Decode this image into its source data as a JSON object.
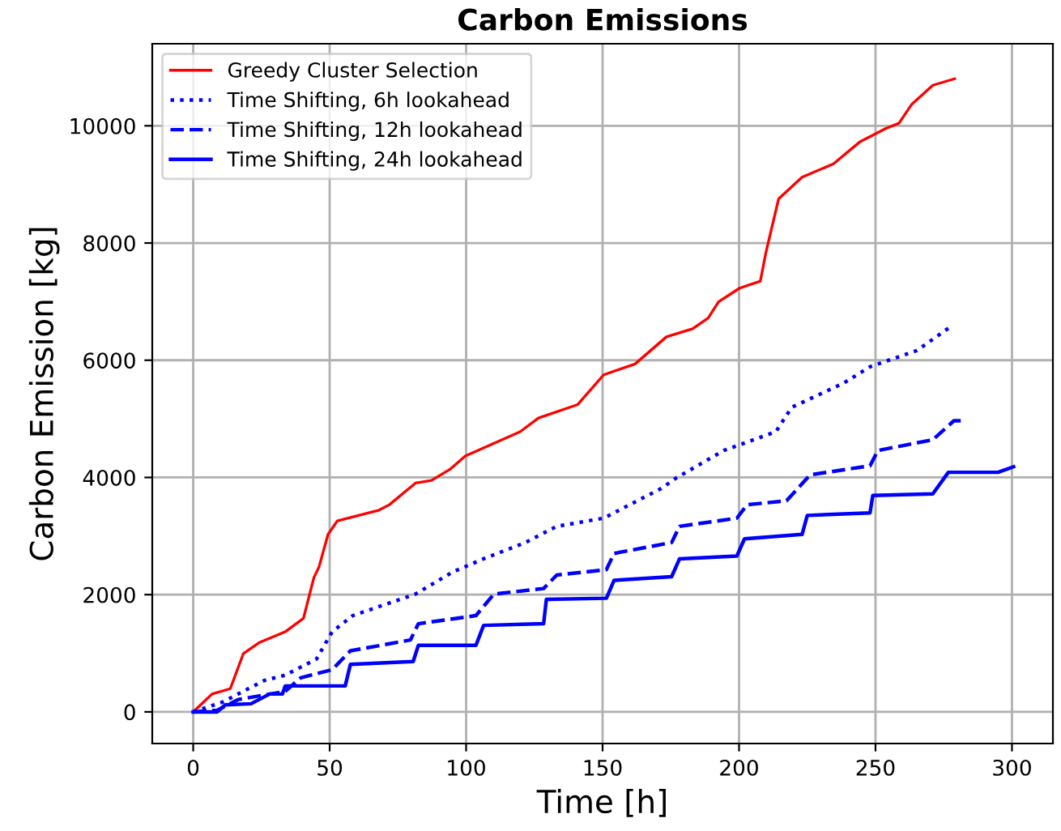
{
  "chart_data": {
    "type": "line",
    "title": "Carbon Emissions",
    "xlabel": "Time [h]",
    "ylabel": "Carbon Emission [kg]",
    "xlim": [
      -15,
      315
    ],
    "ylim": [
      -540,
      11400
    ],
    "xticks": [
      0,
      50,
      100,
      150,
      200,
      250,
      300
    ],
    "yticks": [
      0,
      2000,
      4000,
      6000,
      8000,
      10000
    ],
    "grid": true,
    "legend": "top left",
    "series": [
      {
        "name": "Greedy Cluster Selection",
        "color": "#ff0000",
        "line_style": "solid",
        "x": [
          0,
          6.9,
          13.6,
          18.4,
          24.1,
          33.7,
          40.4,
          44.2,
          46.1,
          49.4,
          52.8,
          68.1,
          71.9,
          81.5,
          87.3,
          94,
          99.7,
          106.4,
          119.8,
          126.5,
          140.9,
          150.4,
          161.9,
          173.4,
          183,
          188.7,
          192.5,
          200.2,
          207.8,
          209.8,
          214.5,
          223.1,
          234.6,
          244.2,
          253.7,
          258.6,
          263.3,
          271,
          279
        ],
        "values": [
          0,
          305,
          396,
          997,
          1180,
          1366,
          1596,
          2288,
          2474,
          3028,
          3258,
          3443,
          3535,
          3906,
          3950,
          4136,
          4366,
          4504,
          4781,
          5014,
          5244,
          5751,
          5936,
          6399,
          6537,
          6720,
          6997,
          7230,
          7349,
          7828,
          8753,
          9122,
          9352,
          9723,
          9953,
          10044,
          10368,
          10692,
          10803
        ]
      },
      {
        "name": "Time Shifting, 6h lookahead",
        "color": "#0000ff",
        "line_style": "dotted",
        "x": [
          0,
          10.7,
          26,
          33.7,
          45.2,
          50.9,
          58.5,
          75.8,
          81.5,
          94.9,
          106.4,
          121.7,
          133.2,
          150.4,
          171.5,
          177.2,
          194.4,
          213.5,
          219.3,
          238.4,
          248,
          265.2,
          277.8
        ],
        "values": [
          0,
          166,
          535,
          626,
          903,
          1366,
          1643,
          1920,
          2011,
          2382,
          2612,
          2889,
          3166,
          3305,
          3812,
          3997,
          4460,
          4781,
          5196,
          5612,
          5889,
          6166,
          6582
        ]
      },
      {
        "name": "Time Shifting, 12h lookahead",
        "color": "#0000ff",
        "line_style": "dashed",
        "x": [
          0,
          8.8,
          16.5,
          33.7,
          39.4,
          50.9,
          57.6,
          79.6,
          82.5,
          103.6,
          110.2,
          128.4,
          133.2,
          151.4,
          154.2,
          175.3,
          178.2,
          199.2,
          203,
          217.4,
          226,
          248,
          250.9,
          271,
          278.7,
          281.5
        ],
        "values": [
          0,
          28,
          211,
          349,
          582,
          720,
          1042,
          1227,
          1504,
          1643,
          2011,
          2105,
          2335,
          2427,
          2704,
          2889,
          3166,
          3305,
          3535,
          3601,
          4044,
          4199,
          4460,
          4643,
          4967,
          4967
        ]
      },
      {
        "name": "Time Shifting, 24h lookahead",
        "color": "#0000ff",
        "line_style": "solid",
        "x": [
          0,
          8.8,
          11.7,
          21.2,
          28,
          32.7,
          33.7,
          55.7,
          57.6,
          80.6,
          82.5,
          103.6,
          106.4,
          128.4,
          129.4,
          151.4,
          154.2,
          175.3,
          178.2,
          199.2,
          202,
          223.1,
          225,
          248,
          249,
          271,
          276.7,
          294.9,
          300.6
        ],
        "values": [
          0,
          0,
          119,
          139,
          305,
          305,
          443,
          443,
          812,
          859,
          1136,
          1136,
          1476,
          1504,
          1920,
          1939,
          2244,
          2307,
          2612,
          2659,
          2953,
          3028,
          3352,
          3396,
          3692,
          3720,
          4088,
          4088,
          4183
        ]
      }
    ]
  }
}
